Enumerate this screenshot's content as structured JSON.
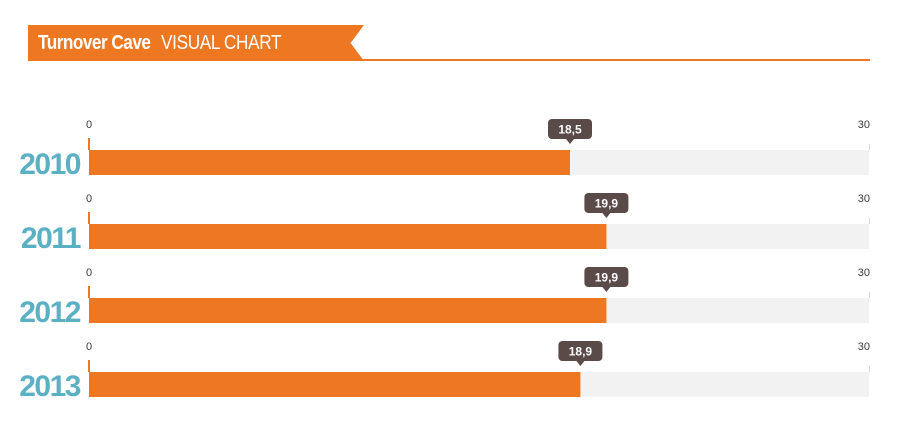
{
  "header": {
    "title_bold": "Turnover Cave",
    "title_light": "VISUAL CHART"
  },
  "colors": {
    "accent": "#ee7722",
    "year_label": "#5cb0c4",
    "track": "#f2f2f2",
    "tooltip": "#5a4a48"
  },
  "chart_data": {
    "type": "bar",
    "orientation": "horizontal",
    "categories": [
      "2010",
      "2011",
      "2012",
      "2013"
    ],
    "values": [
      18.5,
      19.9,
      19.9,
      18.9
    ],
    "value_labels": [
      "18,5",
      "19,9",
      "19,9",
      "18,9"
    ],
    "xlim": [
      0,
      30
    ],
    "tick_min_label": "0",
    "tick_max_label": "30",
    "grid": false,
    "legend": "none"
  }
}
